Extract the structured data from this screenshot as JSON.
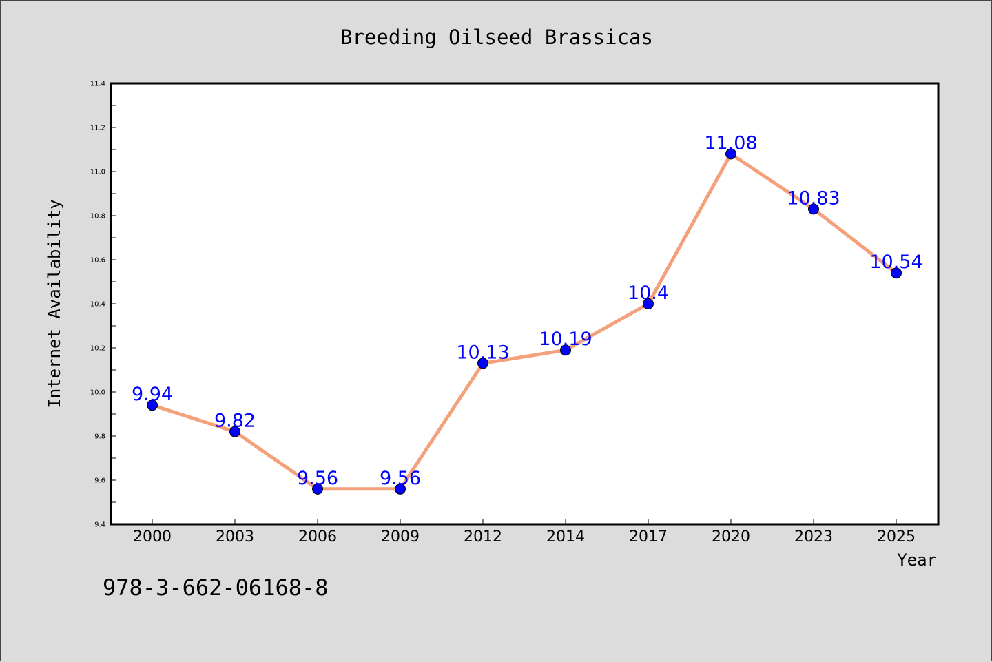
{
  "chart_data": {
    "type": "line",
    "title": "Breeding Oilseed Brassicas",
    "xlabel": "Year",
    "ylabel": "Internet Availability",
    "categories": [
      "2000",
      "2003",
      "2006",
      "2009",
      "2012",
      "2014",
      "2017",
      "2020",
      "2023",
      "2025"
    ],
    "series": [
      {
        "values": [
          9.94,
          9.82,
          9.56,
          9.56,
          10.13,
          10.19,
          10.4,
          11.08,
          10.83,
          10.54
        ],
        "data_labels": [
          "9.94",
          "9.82",
          "9.56",
          "9.56",
          "10.13",
          "10.19",
          "10.4",
          "11.08",
          "10.83",
          "10.54"
        ],
        "line_color": "#f4a07a",
        "marker_color": "#0000ff"
      }
    ],
    "ylim": [
      9.4,
      11.4
    ],
    "yticks": [
      "9.4",
      "9.6",
      "9.8",
      "10.0",
      "10.2",
      "10.4",
      "10.6",
      "10.8",
      "11.0",
      "11.2",
      "11.4"
    ],
    "grid": false,
    "label_color": "#0000ff"
  },
  "footer": {
    "isbn": "978-3-662-06168-8"
  }
}
